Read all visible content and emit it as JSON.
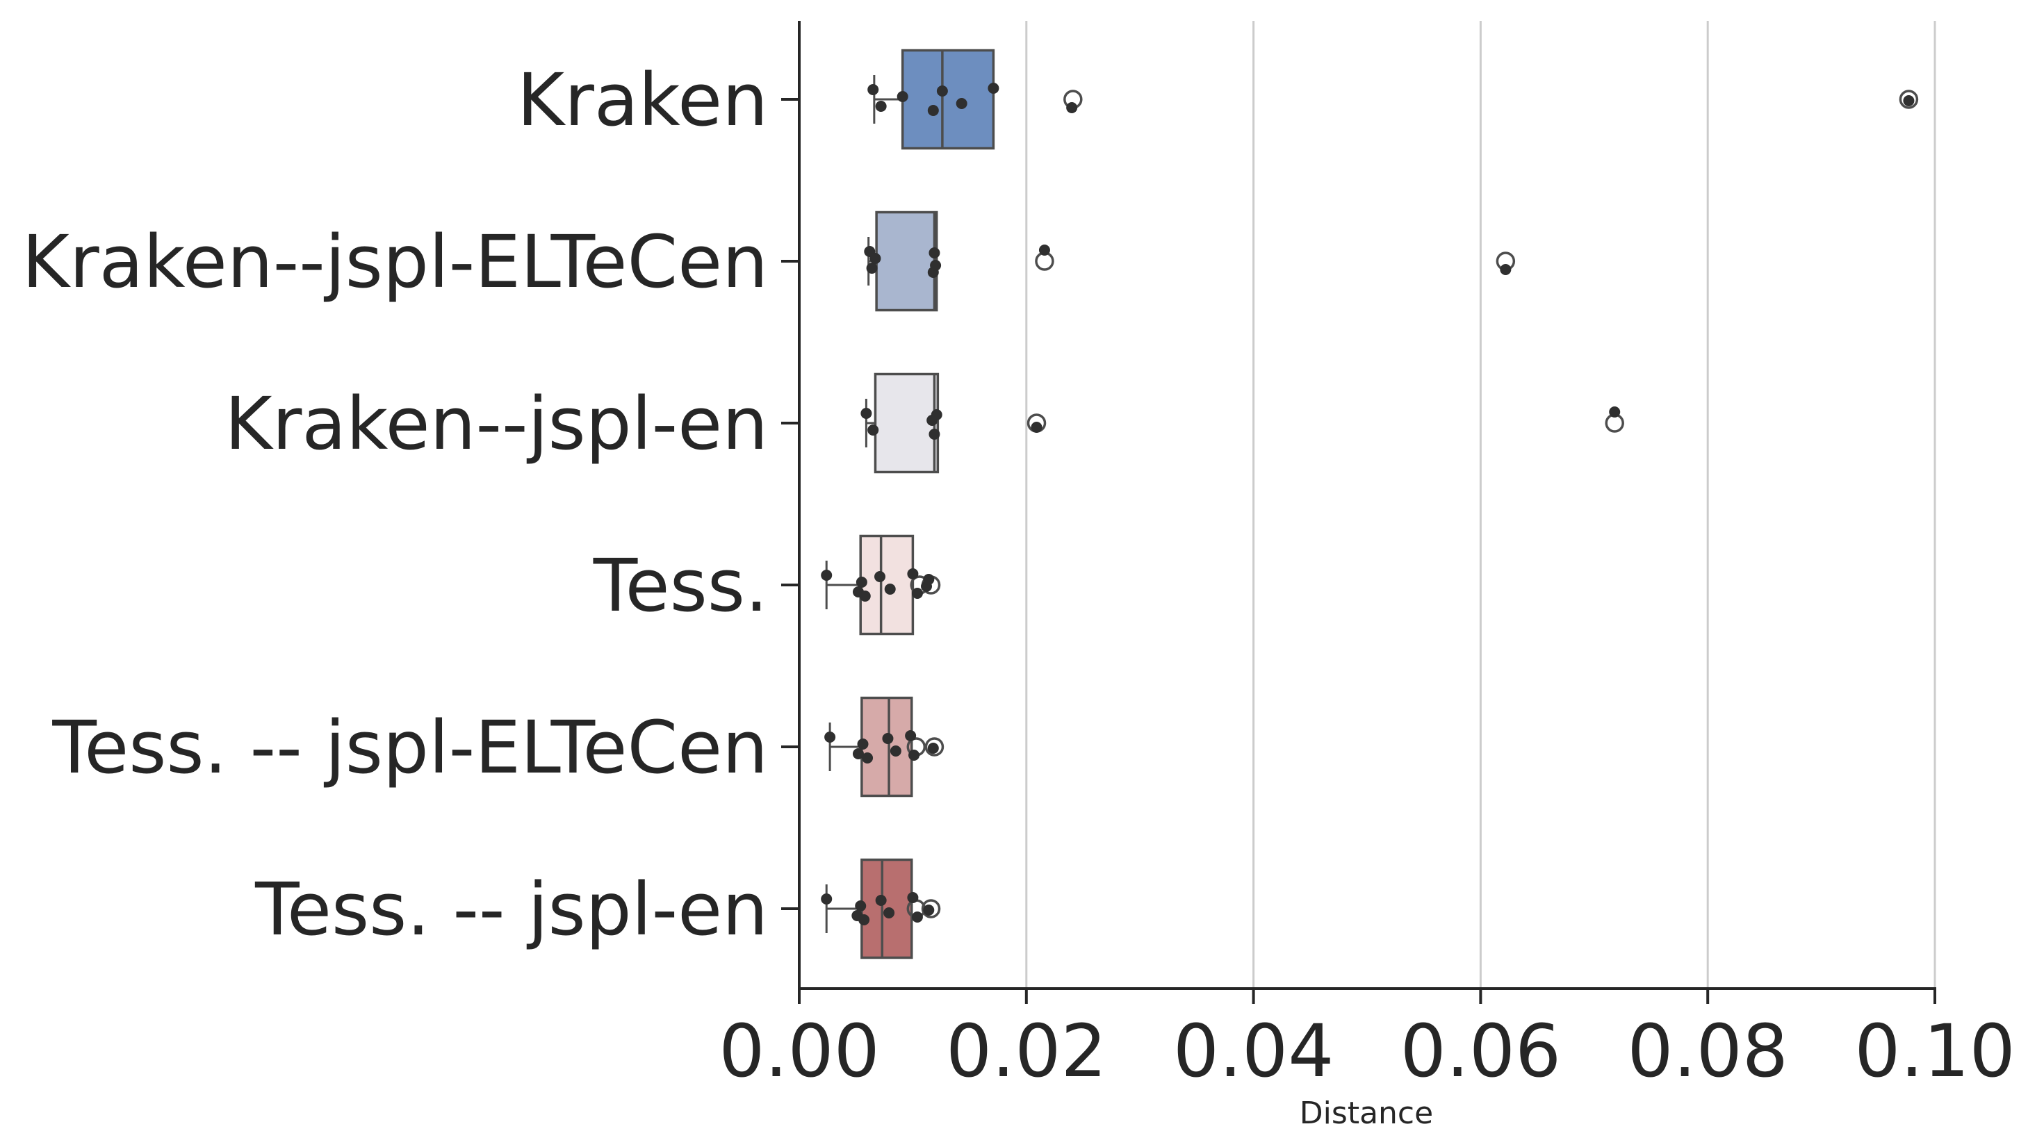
{
  "chart_data": {
    "type": "box",
    "orientation": "horizontal",
    "title": "",
    "xlabel": "Distance",
    "ylabel": "",
    "xlim": [
      0.0,
      0.1
    ],
    "xticks": [
      "0.00",
      "0.02",
      "0.04",
      "0.06",
      "0.08",
      "0.10"
    ],
    "xtick_values": [
      0.0,
      0.02,
      0.04,
      0.06,
      0.08,
      0.1
    ],
    "grid": "vertical",
    "categories": [
      "Kraken",
      "Kraken--jspl-ELTeCen",
      "Kraken--jspl-en",
      "Tess.",
      "Tess. -- jspl-ELTeCen",
      "Tess. -- jspl-en"
    ],
    "series": [
      {
        "color": "#6d8ebf",
        "box": {
          "q1": 0.0091,
          "median": 0.0126,
          "q3": 0.0171,
          "whisker_low": 0.0066,
          "whisker_high": 0.0171
        },
        "outliers": [
          0.0241,
          0.0977
        ],
        "points": [
          0.0065,
          0.0072,
          0.0091,
          0.0118,
          0.0126,
          0.0143,
          0.0171,
          0.024,
          0.0977
        ]
      },
      {
        "color": "#a9b6cf",
        "box": {
          "q1": 0.0068,
          "median": 0.0119,
          "q3": 0.0121,
          "whisker_low": 0.0061,
          "whisker_high": 0.0121
        },
        "outliers": [
          0.0216,
          0.0622
        ],
        "points": [
          0.0062,
          0.0064,
          0.0067,
          0.0118,
          0.0119,
          0.012,
          0.0216,
          0.0622
        ]
      },
      {
        "color": "#e7e6eb",
        "box": {
          "q1": 0.0067,
          "median": 0.0119,
          "q3": 0.0122,
          "whisker_low": 0.0059,
          "whisker_high": 0.0122
        },
        "outliers": [
          0.0209,
          0.0718
        ],
        "points": [
          0.0059,
          0.0065,
          0.0117,
          0.0119,
          0.0121,
          0.0209,
          0.0718
        ]
      },
      {
        "color": "#f2e1e0",
        "box": {
          "q1": 0.0054,
          "median": 0.0072,
          "q3": 0.01,
          "whisker_low": 0.0024,
          "whisker_high": 0.01
        },
        "outliers": [
          0.0106,
          0.0116
        ],
        "points": [
          0.0024,
          0.0052,
          0.0055,
          0.0058,
          0.0071,
          0.008,
          0.01,
          0.0104,
          0.0112,
          0.0114
        ]
      },
      {
        "color": "#d6aaa9",
        "box": {
          "q1": 0.0055,
          "median": 0.0079,
          "q3": 0.0099,
          "whisker_low": 0.0027,
          "whisker_high": 0.0099
        },
        "outliers": [
          0.0103,
          0.0119
        ],
        "points": [
          0.0027,
          0.0052,
          0.0056,
          0.006,
          0.0078,
          0.0085,
          0.0098,
          0.0101,
          0.0118
        ]
      },
      {
        "color": "#b86f6f",
        "box": {
          "q1": 0.0055,
          "median": 0.0073,
          "q3": 0.0099,
          "whisker_low": 0.0024,
          "whisker_high": 0.0099
        },
        "outliers": [
          0.0103,
          0.0116
        ],
        "points": [
          0.0024,
          0.0051,
          0.0054,
          0.0057,
          0.0072,
          0.0079,
          0.01,
          0.0104,
          0.0114
        ]
      }
    ]
  }
}
